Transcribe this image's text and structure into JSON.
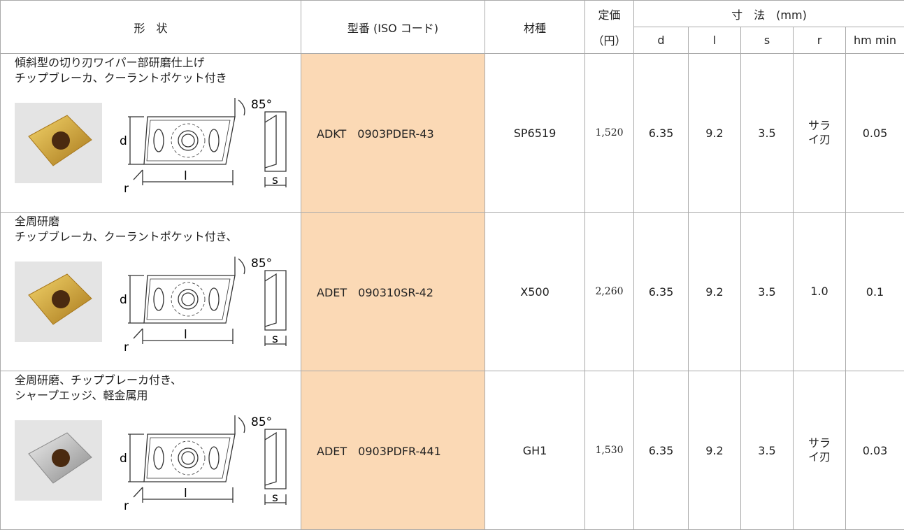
{
  "header": {
    "shape": "形　状",
    "code": "型番 (ISO コード)",
    "grade": "材種",
    "price": "定価",
    "price_unit": "（円）",
    "dims": "寸　法　(mm)",
    "d": "d",
    "l": "l",
    "s": "s",
    "r": "r",
    "hm": "hm min"
  },
  "rows": [
    {
      "description": [
        "傾斜型の切り刃ワイパー部研磨仕上げ",
        "チップブレーカ、クーラントポケット付き"
      ],
      "diagram": {
        "angle": "85°",
        "d": "d",
        "r": "r",
        "l": "l",
        "s": "s"
      },
      "code": "ADKT　0903PDER-43",
      "grade": "SP6519",
      "price": "1,520",
      "d": "6.35",
      "l": "9.2",
      "s": "3.5",
      "r": "サライ刃",
      "hm": "0.05"
    },
    {
      "description": [
        "全周研磨",
        "チップブレーカ、クーラントポケット付き、"
      ],
      "diagram": {
        "angle": "85°",
        "d": "d",
        "r": "r",
        "l": "l",
        "s": "s"
      },
      "code": "ADET　090310SR-42",
      "grade": "X500",
      "price": "2,260",
      "d": "6.35",
      "l": "9.2",
      "s": "3.5",
      "r": "1.0",
      "hm": "0.1"
    },
    {
      "description": [
        "全周研磨、チップブレーカ付き、",
        "シャープエッジ、軽金属用"
      ],
      "diagram": {
        "angle": "85°",
        "d": "d",
        "r": "r",
        "l": "l",
        "s": "s"
      },
      "code": "ADET　0903PDFR-441",
      "grade": "GH1",
      "price": "1,530",
      "d": "6.35",
      "l": "9.2",
      "s": "3.5",
      "r": "サライ刃",
      "hm": "0.03"
    }
  ]
}
